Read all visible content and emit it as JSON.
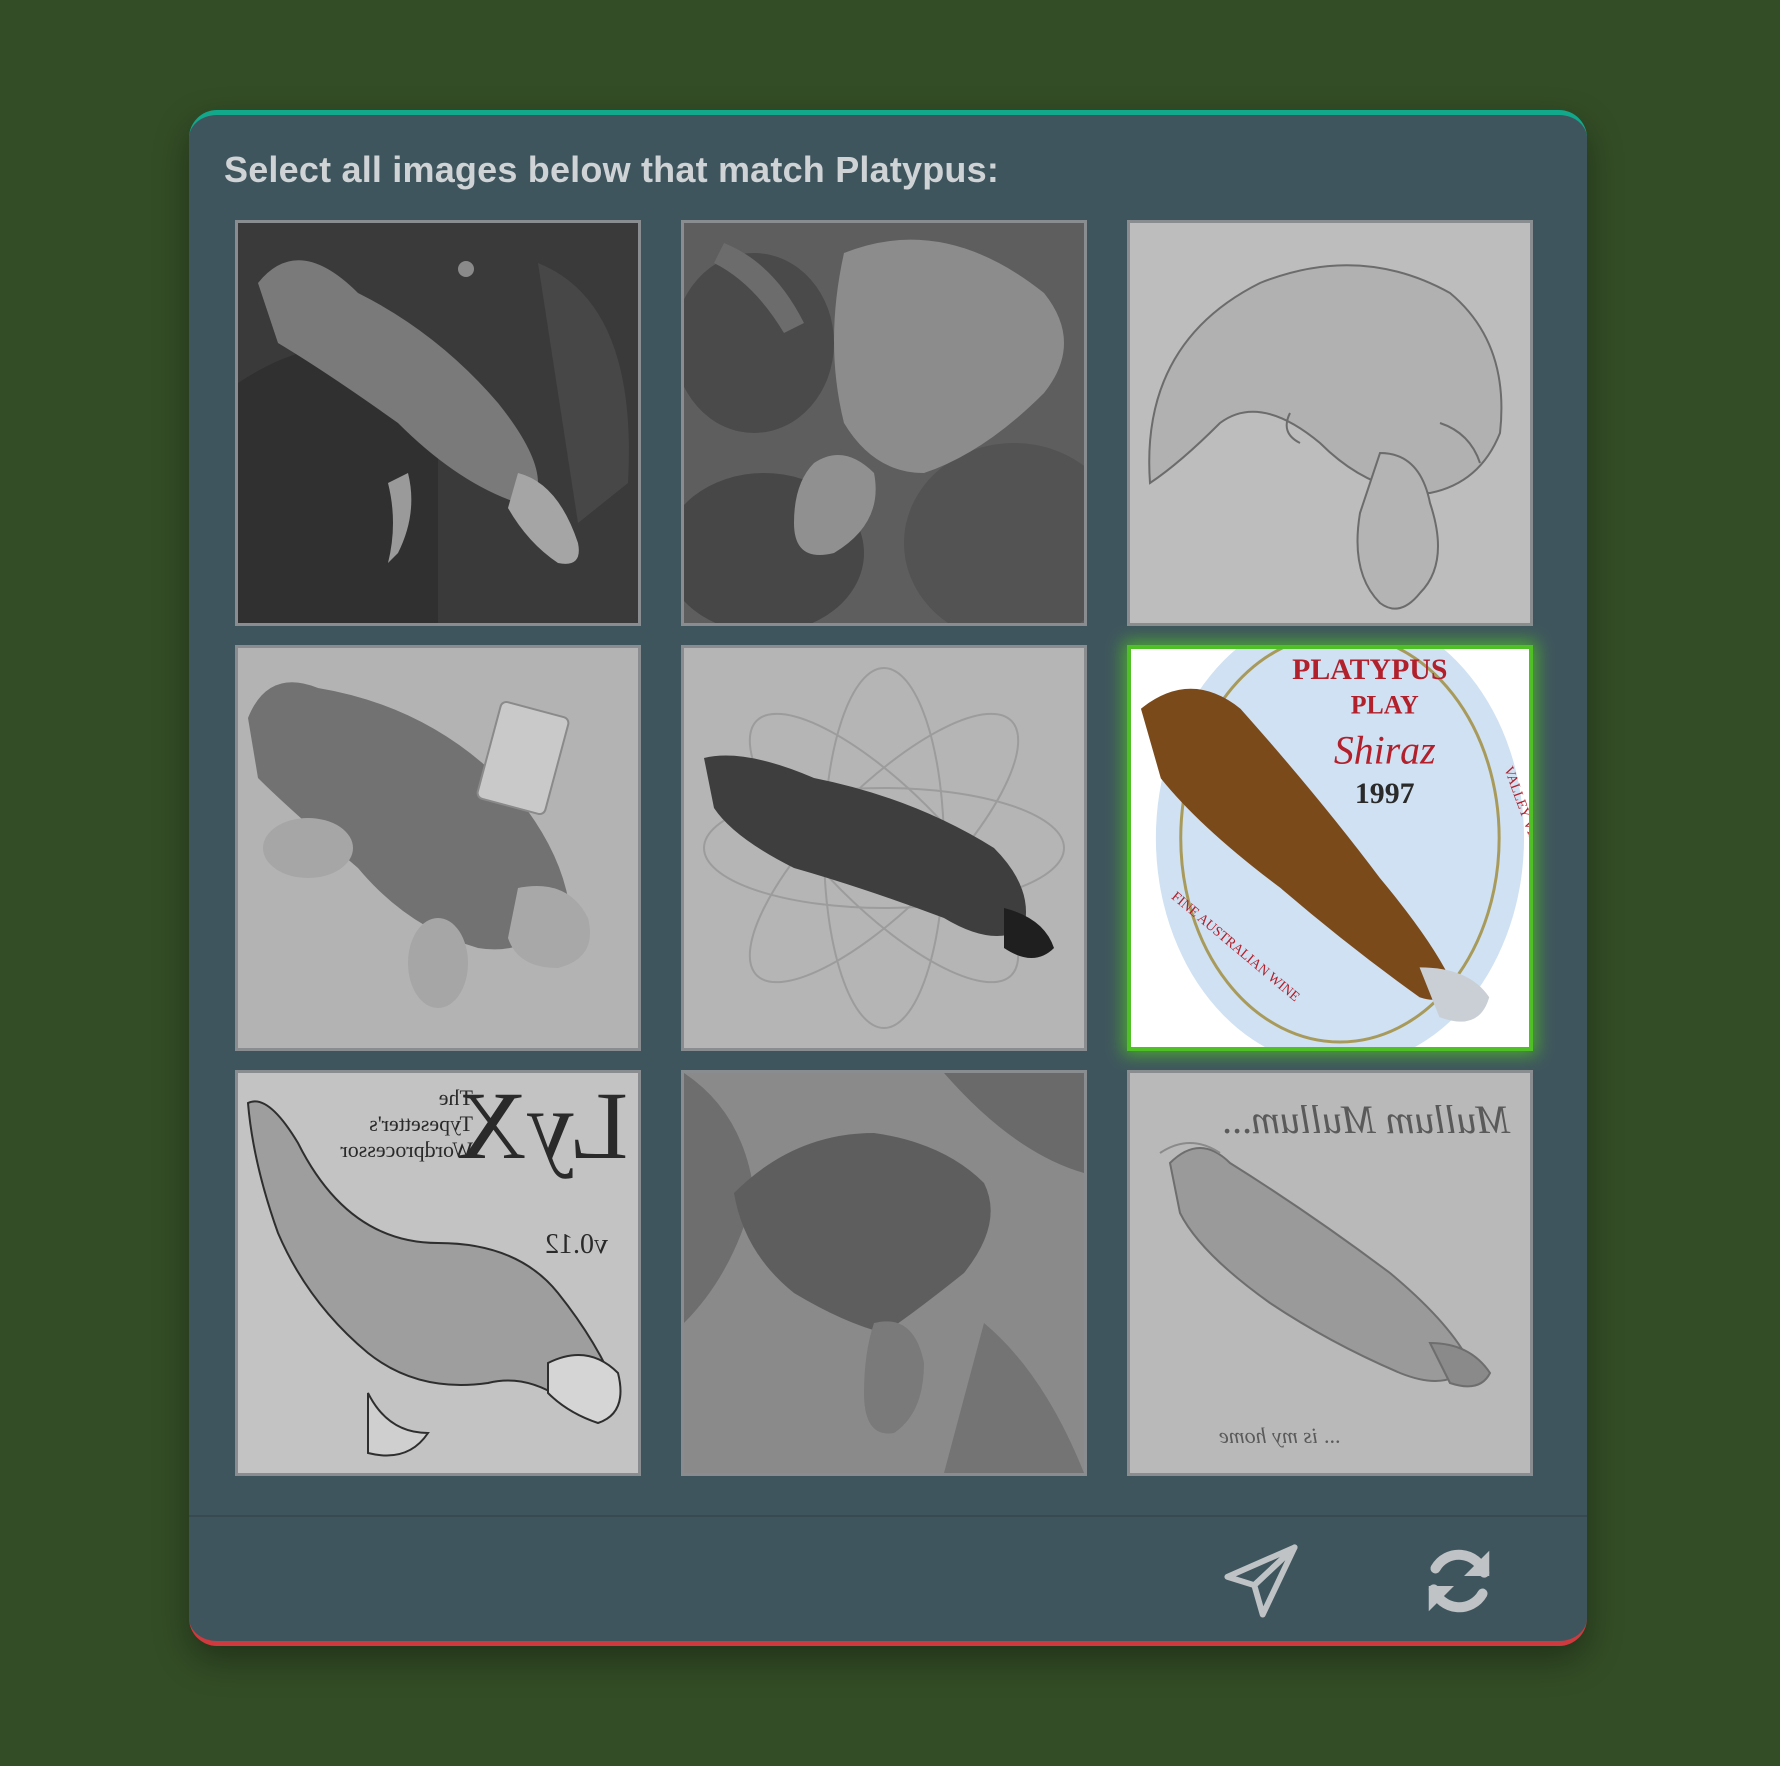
{
  "prompt": {
    "text": "Select all images below that match Platypus:"
  },
  "tiles": [
    {
      "id": 1,
      "description": "platypus photo on dark rocks",
      "selected": false
    },
    {
      "id": 2,
      "description": "platypus photo on wet rocks",
      "selected": false
    },
    {
      "id": 3,
      "description": "pencil sketch of platypus",
      "selected": false
    },
    {
      "id": 4,
      "description": "platypus plush toy",
      "selected": false
    },
    {
      "id": 5,
      "description": "platypus illustration over flower pattern",
      "selected": false
    },
    {
      "id": 6,
      "description": "wine label with platypus",
      "selected": true,
      "label_top": "PLATYPUS",
      "label_play": "PLAY",
      "label_shiraz": "Shiraz",
      "label_year": "1997",
      "label_side": "VALLEY VINEYARDS",
      "label_bottom": "FINE AUSTRALIAN WINE"
    },
    {
      "id": 7,
      "description": "LyX typesetter logo with platypus (mirrored)",
      "selected": false,
      "logo_text": "LyX",
      "line_1": "The",
      "line_2": "Typesetter's",
      "line_3": "Wordprocessor",
      "version": "v0.12"
    },
    {
      "id": 8,
      "description": "platypus engraving among roots",
      "selected": false
    },
    {
      "id": 9,
      "description": "Mullum Mullum platypus sketch (mirrored)",
      "selected": false,
      "title_text": "Mullum Mullum...",
      "caption_text": "... is my home"
    }
  ],
  "footer": {
    "submit_icon": "paper-plane-icon",
    "refresh_icon": "refresh-icon"
  },
  "colors": {
    "page_background": "#334d26",
    "card_background": "#3f555e",
    "top_accent": "#11a88c",
    "bottom_accent": "#d03a3f",
    "selected_glow": "#4fc127",
    "icon_color": "#bfc3c5"
  }
}
